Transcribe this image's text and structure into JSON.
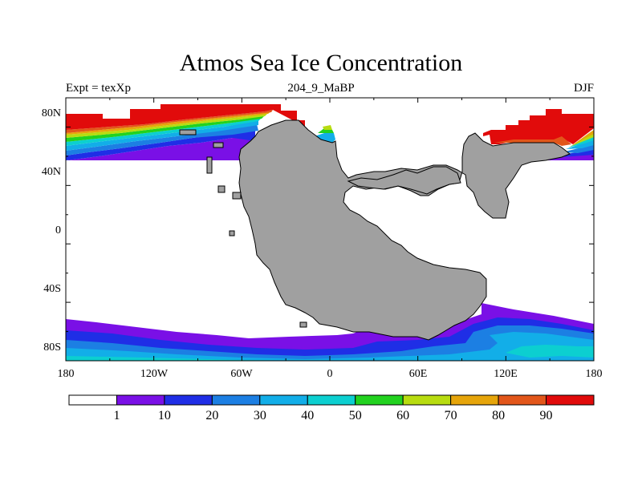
{
  "title": "Atmos Sea Ice Concentration",
  "left_label": "Expt = texXp",
  "center_label": "204_9_MaBP",
  "right_label": "DJF",
  "map": {
    "lon_ticks": [
      "180",
      "120W",
      "60W",
      "0",
      "60E",
      "120E",
      "180"
    ],
    "lat_ticks": [
      "80N",
      "40N",
      "0",
      "40S",
      "80S"
    ]
  },
  "colorbar": {
    "labels": [
      "1",
      "10",
      "20",
      "30",
      "40",
      "50",
      "60",
      "70",
      "80",
      "90"
    ],
    "colors": [
      "#ffffff",
      "#7a10e6",
      "#1f2ee6",
      "#1c7fe3",
      "#12aee8",
      "#0ccfd0",
      "#22d21f",
      "#b8dc10",
      "#e6a50a",
      "#e2561a",
      "#e10b0b"
    ]
  },
  "colors": {
    "land": "#a0a0a0",
    "coast": "#000000"
  }
}
